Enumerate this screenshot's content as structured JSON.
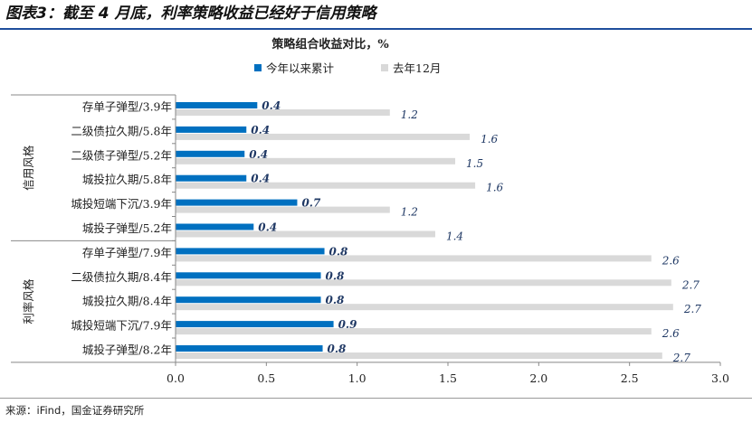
{
  "figure_title": "图表3：截至 4 月底，利率策略收益已经好于信用策略",
  "source_note": "来源：iFind，国金证券研究所",
  "chart_data": {
    "type": "bar",
    "orientation": "horizontal",
    "title": "策略组合收益对比，%",
    "legend_position": "top",
    "xlim": [
      0.0,
      3.0
    ],
    "x_ticks": [
      "0.0",
      "0.5",
      "1.0",
      "1.5",
      "2.0",
      "2.5",
      "3.0"
    ],
    "grid": false,
    "groups": [
      {
        "label": "信用风格",
        "count": 6
      },
      {
        "label": "利率风格",
        "count": 5
      }
    ],
    "categories": [
      "存单子弹型/3.9年",
      "二级债拉久期/5.8年",
      "二级债子弹型/5.2年",
      "城投拉久期/5.8年",
      "城投短端下沉/3.9年",
      "城投子弹型/5.2年",
      "存单子弹型/7.9年",
      "二级债拉久期/8.4年",
      "城投拉久期/8.4年",
      "城投短端下沉/7.9年",
      "城投子弹型/8.2年"
    ],
    "series": [
      {
        "name": "今年以来累计",
        "color": "#0070c0",
        "values": [
          0.45,
          0.39,
          0.38,
          0.39,
          0.67,
          0.43,
          0.82,
          0.8,
          0.8,
          0.87,
          0.81
        ],
        "labels": [
          "0.4",
          "0.4",
          "0.4",
          "0.4",
          "0.7",
          "0.4",
          "0.8",
          "0.8",
          "0.8",
          "0.9",
          "0.8"
        ]
      },
      {
        "name": "去年12月",
        "color": "#d9d9d9",
        "values": [
          1.18,
          1.62,
          1.54,
          1.65,
          1.18,
          1.43,
          2.62,
          2.73,
          2.74,
          2.62,
          2.68
        ],
        "labels": [
          "1.2",
          "1.6",
          "1.5",
          "1.6",
          "1.2",
          "1.4",
          "2.6",
          "2.7",
          "2.7",
          "2.6",
          "2.7"
        ]
      }
    ]
  }
}
